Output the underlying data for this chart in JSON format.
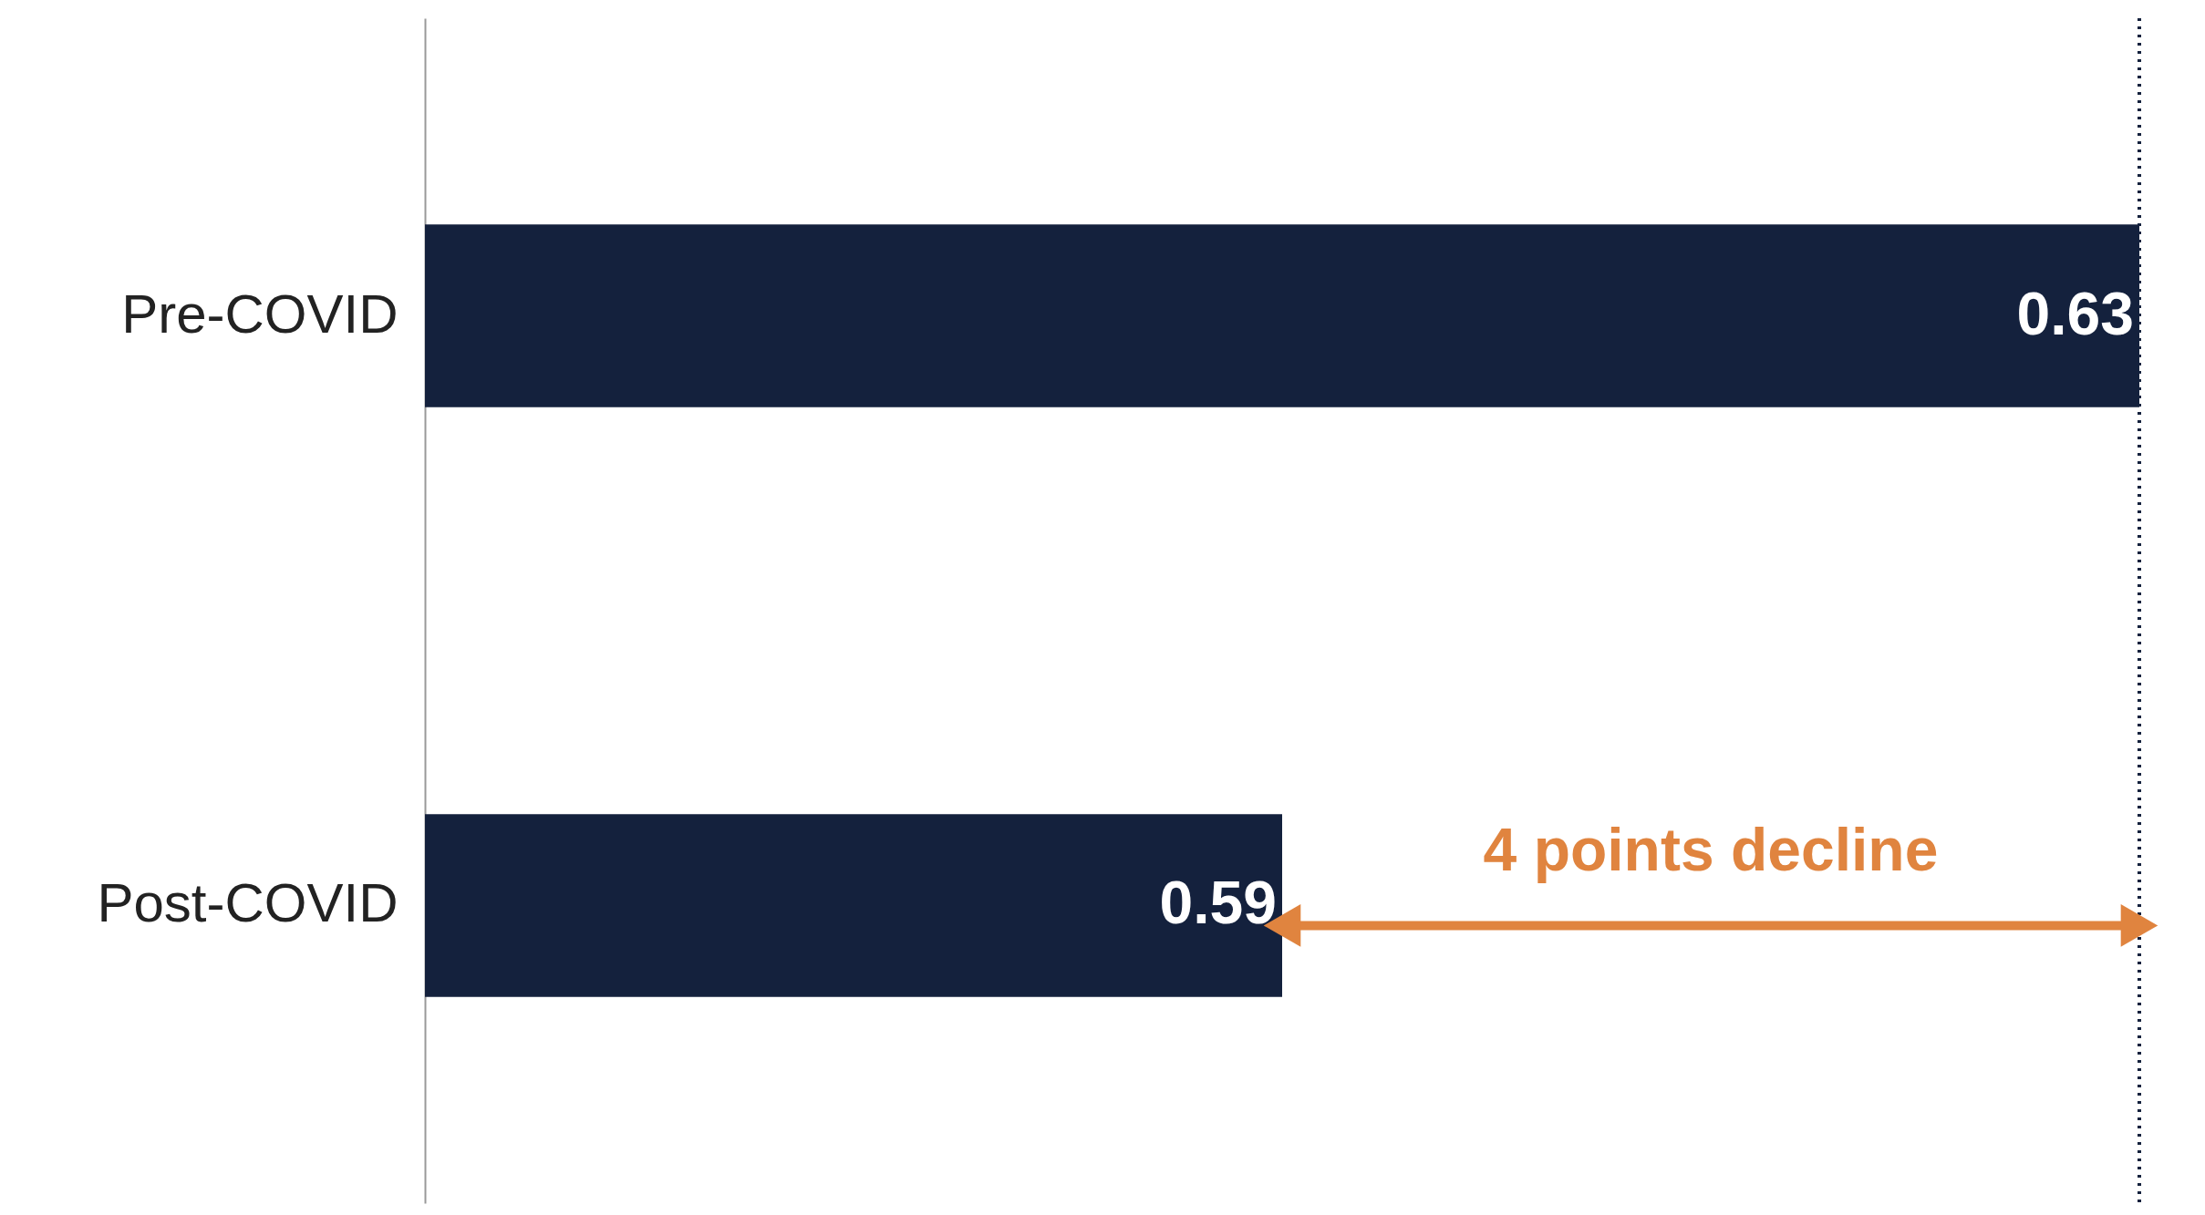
{
  "chart_data": {
    "type": "bar",
    "orientation": "horizontal",
    "categories": [
      "Pre-COVID",
      "Post-COVID"
    ],
    "values": [
      0.63,
      0.59
    ],
    "color": "#14213d",
    "data_labels": true,
    "xlim": [
      0.55,
      0.63
    ],
    "tick_labels": "y",
    "grid": false,
    "ref_lines": [
      {
        "axis": "x",
        "value": 0.63,
        "color": "#14213d",
        "line_style": "dotted"
      }
    ],
    "annotations": [
      "4 points decline"
    ]
  }
}
